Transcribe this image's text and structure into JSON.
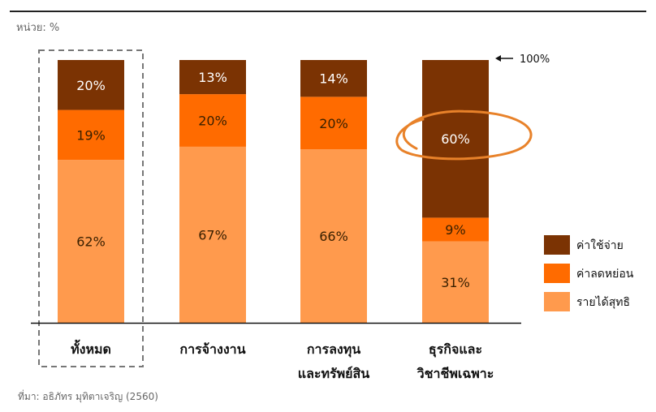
{
  "unit_label": "หน่วย: %",
  "source_label": "ที่มา: อธิภัทร มุทิตาเจริญ (2560)",
  "annotation_label": "100%",
  "colors": {
    "expense": "#7b3303",
    "deduction": "#ff6b00",
    "net_income": "#ff9a4d",
    "highlight": "#e8822a",
    "frame": "#777777"
  },
  "chart_data": {
    "type": "bar",
    "stacked": true,
    "categories": [
      [
        "ทั้งหมด"
      ],
      [
        "การจ้างงาน"
      ],
      [
        "การลงทุน",
        "และทรัพย์สิน"
      ],
      [
        "ธุรกิจและ",
        "วิชาชีพเฉพาะ"
      ]
    ],
    "series": [
      {
        "name": "รายได้สุทธิ",
        "color_key": "net_income",
        "values": [
          62,
          67,
          66,
          31
        ],
        "labels": [
          "62%",
          "67%",
          "66%",
          "31%"
        ]
      },
      {
        "name": "ค่าลดหย่อน",
        "color_key": "deduction",
        "values": [
          19,
          20,
          20,
          9
        ],
        "labels": [
          "19%",
          "20%",
          "20%",
          "9%"
        ]
      },
      {
        "name": "ค่าใช้จ่าย",
        "color_key": "expense",
        "values": [
          20,
          13,
          14,
          60
        ],
        "labels": [
          "20%",
          "13%",
          "14%",
          "60%"
        ]
      }
    ],
    "legend": [
      {
        "name": "ค่าใช้จ่าย",
        "color_key": "expense"
      },
      {
        "name": "ค่าลดหย่อน",
        "color_key": "deduction"
      },
      {
        "name": "รายได้สุทธิ",
        "color_key": "net_income"
      }
    ],
    "legend_position": "right",
    "highlighted_category_index": 0,
    "circled_value": {
      "category_index": 3,
      "series_index": 2
    },
    "ylim": [
      0,
      100
    ],
    "grid": false
  }
}
